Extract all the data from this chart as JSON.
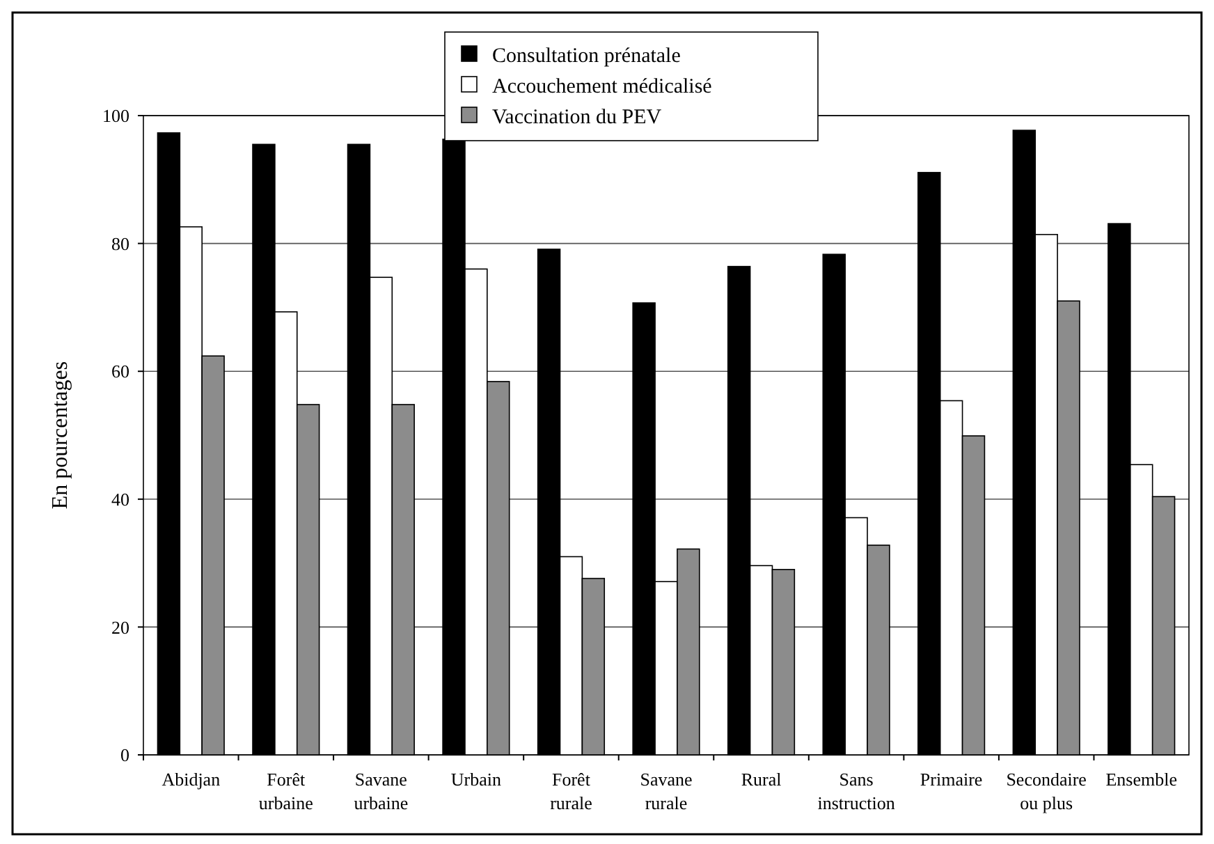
{
  "chart_data": {
    "type": "bar",
    "ylabel": "En pourcentages",
    "categories": [
      "Abidjan",
      "Forêt urbaine",
      "Savane urbaine",
      "Urbain",
      "Forêt rurale",
      "Savane rurale",
      "Rural",
      "Sans instruction",
      "Primaire",
      "Secondaire ou plus",
      "Ensemble"
    ],
    "series": [
      {
        "name": "Consultation prénatale",
        "color": "#000000",
        "values": [
          97.3,
          95.5,
          95.5,
          96.3,
          79.1,
          70.7,
          76.4,
          78.3,
          91.1,
          97.7,
          83.1
        ]
      },
      {
        "name": "Accouchement médicalisé",
        "color": "#ffffff",
        "values": [
          82.6,
          69.3,
          74.7,
          76.0,
          31.0,
          27.1,
          29.6,
          37.1,
          55.4,
          81.4,
          45.4
        ]
      },
      {
        "name": "Vaccination du PEV",
        "color": "#8c8c8c",
        "values": [
          62.4,
          54.8,
          54.8,
          58.4,
          27.6,
          32.2,
          29.0,
          32.8,
          49.9,
          71.0,
          40.4
        ]
      }
    ],
    "ylim": [
      0,
      100
    ],
    "yticks": [
      0,
      20,
      40,
      60,
      80,
      100
    ],
    "grid": "y",
    "legend": "top"
  }
}
